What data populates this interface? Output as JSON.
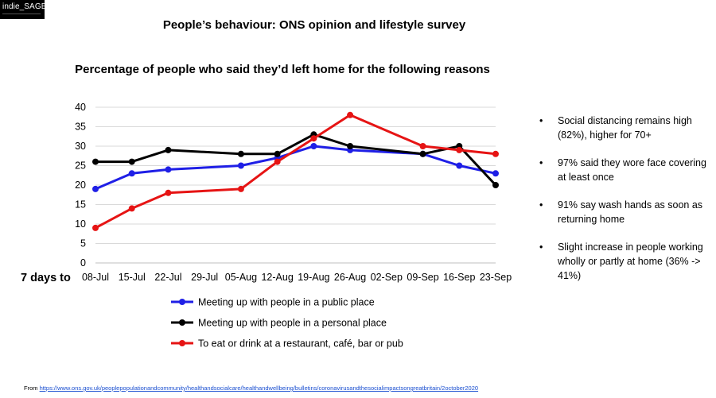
{
  "logo": {
    "text": "indie_SAGE"
  },
  "header": {
    "title": "People’s behaviour: ONS opinion and lifestyle survey",
    "subtitle": "Percentage of people who said they’d left home for the following reasons"
  },
  "bullets": [
    "Social distancing remains high (82%), higher for 70+",
    "97% said they wore face covering at least once",
    "91% say wash hands as soon as returning home",
    "Slight increase in people working wholly or partly at home (36% -> 41%)"
  ],
  "source": {
    "prefix": "From",
    "link": "https://www.ons.gov.uk/peoplepopulationandcommunity/healthandsocialcare/healthandwellbeing/bulletins/coronavirusandthesocialimpactsongreatbritain/2october2020"
  },
  "chart_data": {
    "type": "line",
    "title": "Percentage of people who said they’d left home for the following reasons",
    "xlabel": "7 days to",
    "ylabel": "",
    "categories": [
      "08-Jul",
      "15-Jul",
      "22-Jul",
      "29-Jul",
      "05-Aug",
      "12-Aug",
      "19-Aug",
      "26-Aug",
      "02-Sep",
      "09-Sep",
      "16-Sep",
      "23-Sep"
    ],
    "ylim": [
      0,
      40
    ],
    "yticks": [
      0,
      5,
      10,
      15,
      20,
      25,
      30,
      35,
      40
    ],
    "grid": true,
    "legend_position": "bottom",
    "series": [
      {
        "name": "Meeting up with people in a public place",
        "color": "#1f1fe6",
        "points": [
          [
            0,
            19
          ],
          [
            1,
            23
          ],
          [
            2,
            24
          ],
          [
            4,
            25
          ],
          [
            5,
            27
          ],
          [
            6,
            30
          ],
          [
            7,
            29
          ],
          [
            9,
            28
          ],
          [
            10,
            25
          ],
          [
            11,
            23
          ]
        ]
      },
      {
        "name": "Meeting up with people in a personal place",
        "color": "#000000",
        "points": [
          [
            0,
            26
          ],
          [
            1,
            26
          ],
          [
            2,
            29
          ],
          [
            4,
            28
          ],
          [
            5,
            28
          ],
          [
            6,
            33
          ],
          [
            7,
            30
          ],
          [
            9,
            28
          ],
          [
            10,
            30
          ],
          [
            11,
            20
          ]
        ]
      },
      {
        "name": "To eat or drink at a restaurant, café, bar or pub",
        "color": "#e61414",
        "points": [
          [
            0,
            9
          ],
          [
            1,
            14
          ],
          [
            2,
            18
          ],
          [
            4,
            19
          ],
          [
            5,
            26
          ],
          [
            6,
            32
          ],
          [
            7,
            38
          ],
          [
            9,
            30
          ],
          [
            10,
            29
          ],
          [
            11,
            28
          ]
        ]
      }
    ]
  }
}
